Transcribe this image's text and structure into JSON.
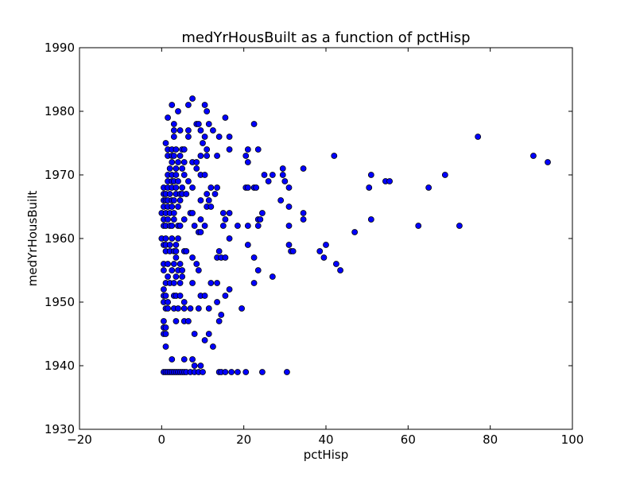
{
  "chart_data": {
    "type": "scatter",
    "title": "medYrHousBuilt as a function of pctHisp",
    "xlabel": "pctHisp",
    "ylabel": "medYrHousBuilt",
    "xlim": [
      -20,
      100
    ],
    "ylim": [
      1930,
      1990
    ],
    "xticks": [
      -20,
      0,
      20,
      40,
      60,
      80,
      100
    ],
    "yticks": [
      1930,
      1940,
      1950,
      1960,
      1970,
      1980,
      1990
    ],
    "grid": false,
    "legend": false,
    "marker_color": "#0000ff",
    "marker_edge_color": "#000000",
    "points": [
      [
        0.5,
        1939
      ],
      [
        1.0,
        1939
      ],
      [
        1.5,
        1939
      ],
      [
        2.0,
        1939
      ],
      [
        2.5,
        1939
      ],
      [
        3.0,
        1939
      ],
      [
        3.5,
        1939
      ],
      [
        4.0,
        1939
      ],
      [
        4.5,
        1939
      ],
      [
        5.0,
        1939
      ],
      [
        5.5,
        1939
      ],
      [
        6.0,
        1939
      ],
      [
        7.0,
        1939
      ],
      [
        8.0,
        1939
      ],
      [
        9.0,
        1939
      ],
      [
        10.0,
        1939
      ],
      [
        14.0,
        1939
      ],
      [
        14.5,
        1939
      ],
      [
        15.5,
        1939
      ],
      [
        17.0,
        1939
      ],
      [
        18.5,
        1939
      ],
      [
        20.5,
        1939
      ],
      [
        24.5,
        1939
      ],
      [
        30.5,
        1939
      ],
      [
        1.0,
        1943
      ],
      [
        2.5,
        1941
      ],
      [
        5.5,
        1941
      ],
      [
        7.5,
        1941
      ],
      [
        8.0,
        1940
      ],
      [
        9.5,
        1940
      ],
      [
        10.5,
        1944
      ],
      [
        12.5,
        1943
      ],
      [
        11.5,
        1945
      ],
      [
        8.0,
        1945
      ],
      [
        3.5,
        1947
      ],
      [
        5.5,
        1947
      ],
      [
        6.5,
        1947
      ],
      [
        0.5,
        1945
      ],
      [
        1.0,
        1945
      ],
      [
        0.5,
        1946
      ],
      [
        1.0,
        1946
      ],
      [
        0.5,
        1947
      ],
      [
        1.0,
        1949
      ],
      [
        1.5,
        1949
      ],
      [
        3.0,
        1949
      ],
      [
        4.0,
        1949
      ],
      [
        5.5,
        1949
      ],
      [
        7.0,
        1949
      ],
      [
        9.0,
        1949
      ],
      [
        11.5,
        1949
      ],
      [
        13.5,
        1950
      ],
      [
        14.5,
        1948
      ],
      [
        14.0,
        1947
      ],
      [
        19.5,
        1949
      ],
      [
        0.5,
        1950
      ],
      [
        1.5,
        1950
      ],
      [
        0.5,
        1951
      ],
      [
        1.0,
        1951
      ],
      [
        3.0,
        1951
      ],
      [
        3.5,
        1951
      ],
      [
        4.5,
        1951
      ],
      [
        5.5,
        1950
      ],
      [
        9.5,
        1951
      ],
      [
        10.5,
        1951
      ],
      [
        15.5,
        1951
      ],
      [
        16.5,
        1952
      ],
      [
        0.5,
        1952
      ],
      [
        1.0,
        1953
      ],
      [
        2.0,
        1953
      ],
      [
        3.0,
        1953
      ],
      [
        4.5,
        1953
      ],
      [
        7.5,
        1953
      ],
      [
        12.0,
        1953
      ],
      [
        13.5,
        1953
      ],
      [
        22.5,
        1953
      ],
      [
        1.5,
        1954
      ],
      [
        3.5,
        1954
      ],
      [
        5.0,
        1954
      ],
      [
        0.5,
        1955
      ],
      [
        2.5,
        1955
      ],
      [
        4.0,
        1955
      ],
      [
        5.0,
        1955
      ],
      [
        9.0,
        1955
      ],
      [
        23.5,
        1955
      ],
      [
        27.0,
        1954
      ],
      [
        0.5,
        1956
      ],
      [
        1.5,
        1956
      ],
      [
        3.0,
        1956
      ],
      [
        4.5,
        1956
      ],
      [
        8.5,
        1956
      ],
      [
        3.5,
        1957
      ],
      [
        7.5,
        1957
      ],
      [
        13.5,
        1957
      ],
      [
        14.5,
        1957
      ],
      [
        15.5,
        1957
      ],
      [
        22.5,
        1957
      ],
      [
        1.0,
        1958
      ],
      [
        2.0,
        1958
      ],
      [
        3.0,
        1958
      ],
      [
        3.5,
        1958
      ],
      [
        5.5,
        1958
      ],
      [
        6.0,
        1958
      ],
      [
        14.0,
        1958
      ],
      [
        31.5,
        1958
      ],
      [
        32.0,
        1958
      ],
      [
        38.5,
        1958
      ],
      [
        39.5,
        1957
      ],
      [
        42.5,
        1956
      ],
      [
        43.5,
        1955
      ],
      [
        0.5,
        1959
      ],
      [
        1.0,
        1959
      ],
      [
        2.0,
        1959
      ],
      [
        3.5,
        1959
      ],
      [
        21.0,
        1959
      ],
      [
        31.0,
        1959
      ],
      [
        40.0,
        1959
      ],
      [
        0.0,
        1960
      ],
      [
        1.0,
        1960
      ],
      [
        2.5,
        1960
      ],
      [
        4.0,
        1960
      ],
      [
        16.5,
        1960
      ],
      [
        47.0,
        1961
      ],
      [
        9.0,
        1961
      ],
      [
        9.5,
        1961
      ],
      [
        0.5,
        1962
      ],
      [
        1.0,
        1962
      ],
      [
        2.0,
        1962
      ],
      [
        2.5,
        1962
      ],
      [
        4.0,
        1962
      ],
      [
        4.5,
        1962
      ],
      [
        8.0,
        1962
      ],
      [
        10.5,
        1962
      ],
      [
        15.0,
        1962
      ],
      [
        18.5,
        1962
      ],
      [
        21.0,
        1962
      ],
      [
        23.5,
        1962
      ],
      [
        31.0,
        1962
      ],
      [
        62.5,
        1962
      ],
      [
        72.5,
        1962
      ],
      [
        0.5,
        1963
      ],
      [
        1.5,
        1963
      ],
      [
        3.0,
        1963
      ],
      [
        5.5,
        1963
      ],
      [
        9.5,
        1963
      ],
      [
        15.5,
        1963
      ],
      [
        23.5,
        1963
      ],
      [
        24.0,
        1963
      ],
      [
        34.5,
        1963
      ],
      [
        51.0,
        1963
      ],
      [
        0.0,
        1964
      ],
      [
        1.0,
        1964
      ],
      [
        2.0,
        1964
      ],
      [
        3.0,
        1964
      ],
      [
        7.0,
        1964
      ],
      [
        7.5,
        1964
      ],
      [
        15.0,
        1964
      ],
      [
        16.5,
        1964
      ],
      [
        24.5,
        1964
      ],
      [
        34.5,
        1964
      ],
      [
        0.5,
        1965
      ],
      [
        1.5,
        1965
      ],
      [
        2.5,
        1965
      ],
      [
        4.0,
        1965
      ],
      [
        11.0,
        1965
      ],
      [
        12.0,
        1965
      ],
      [
        31.0,
        1965
      ],
      [
        0.5,
        1966
      ],
      [
        1.0,
        1966
      ],
      [
        1.5,
        1966
      ],
      [
        2.5,
        1966
      ],
      [
        3.0,
        1966
      ],
      [
        4.5,
        1966
      ],
      [
        9.5,
        1966
      ],
      [
        11.5,
        1966
      ],
      [
        29.0,
        1966
      ],
      [
        0.5,
        1967
      ],
      [
        1.0,
        1967
      ],
      [
        2.0,
        1967
      ],
      [
        3.5,
        1967
      ],
      [
        4.5,
        1967
      ],
      [
        5.0,
        1967
      ],
      [
        6.0,
        1967
      ],
      [
        11.0,
        1967
      ],
      [
        13.0,
        1967
      ],
      [
        0.5,
        1968
      ],
      [
        1.5,
        1968
      ],
      [
        2.5,
        1968
      ],
      [
        3.5,
        1968
      ],
      [
        5.0,
        1968
      ],
      [
        7.5,
        1968
      ],
      [
        12.0,
        1968
      ],
      [
        13.5,
        1968
      ],
      [
        20.5,
        1968
      ],
      [
        21.0,
        1968
      ],
      [
        22.5,
        1968
      ],
      [
        23.0,
        1968
      ],
      [
        31.0,
        1968
      ],
      [
        50.5,
        1968
      ],
      [
        65.0,
        1968
      ],
      [
        1.5,
        1969
      ],
      [
        2.5,
        1969
      ],
      [
        3.0,
        1969
      ],
      [
        4.0,
        1969
      ],
      [
        6.5,
        1969
      ],
      [
        26.0,
        1969
      ],
      [
        30.0,
        1969
      ],
      [
        54.5,
        1969
      ],
      [
        55.5,
        1969
      ],
      [
        1.5,
        1970
      ],
      [
        2.5,
        1970
      ],
      [
        3.5,
        1970
      ],
      [
        5.5,
        1970
      ],
      [
        9.5,
        1970
      ],
      [
        10.5,
        1970
      ],
      [
        25.0,
        1970
      ],
      [
        27.0,
        1970
      ],
      [
        29.5,
        1970
      ],
      [
        51.0,
        1970
      ],
      [
        69.0,
        1970
      ],
      [
        2.0,
        1971
      ],
      [
        3.5,
        1971
      ],
      [
        5.0,
        1971
      ],
      [
        8.5,
        1971
      ],
      [
        29.5,
        1971
      ],
      [
        34.5,
        1971
      ],
      [
        2.5,
        1972
      ],
      [
        4.0,
        1972
      ],
      [
        5.5,
        1972
      ],
      [
        7.5,
        1972
      ],
      [
        8.5,
        1972
      ],
      [
        21.0,
        1972
      ],
      [
        94.0,
        1972
      ],
      [
        1.5,
        1973
      ],
      [
        2.5,
        1973
      ],
      [
        3.0,
        1973
      ],
      [
        4.5,
        1973
      ],
      [
        9.5,
        1973
      ],
      [
        11.0,
        1973
      ],
      [
        13.5,
        1973
      ],
      [
        20.5,
        1973
      ],
      [
        42.0,
        1973
      ],
      [
        90.5,
        1973
      ],
      [
        1.5,
        1974
      ],
      [
        2.5,
        1974
      ],
      [
        3.5,
        1974
      ],
      [
        5.0,
        1974
      ],
      [
        5.5,
        1974
      ],
      [
        11.0,
        1974
      ],
      [
        16.5,
        1974
      ],
      [
        21.0,
        1974
      ],
      [
        23.5,
        1974
      ],
      [
        1.0,
        1975
      ],
      [
        10.0,
        1975
      ],
      [
        3.0,
        1976
      ],
      [
        6.5,
        1976
      ],
      [
        10.5,
        1976
      ],
      [
        14.0,
        1976
      ],
      [
        16.5,
        1976
      ],
      [
        77.0,
        1976
      ],
      [
        3.0,
        1977
      ],
      [
        4.5,
        1977
      ],
      [
        6.5,
        1977
      ],
      [
        9.5,
        1977
      ],
      [
        12.5,
        1977
      ],
      [
        3.0,
        1978
      ],
      [
        8.5,
        1978
      ],
      [
        9.0,
        1978
      ],
      [
        11.5,
        1978
      ],
      [
        22.5,
        1978
      ],
      [
        1.5,
        1979
      ],
      [
        15.5,
        1979
      ],
      [
        4.0,
        1980
      ],
      [
        11.0,
        1980
      ],
      [
        2.5,
        1981
      ],
      [
        6.5,
        1981
      ],
      [
        10.5,
        1981
      ],
      [
        7.5,
        1982
      ]
    ]
  }
}
